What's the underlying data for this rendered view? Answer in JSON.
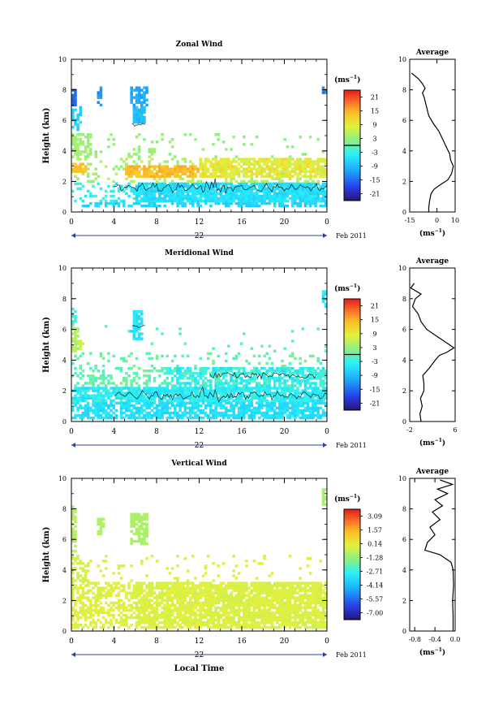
{
  "chart_data": [
    {
      "type": "heatmap",
      "title": "Zonal Wind",
      "xlabel": "",
      "ylabel": "Height (km)",
      "xlim": [
        0,
        24
      ],
      "ylim": [
        0,
        10
      ],
      "xticks": [
        "0",
        "4",
        "8",
        "12",
        "16",
        "20",
        "0"
      ],
      "yticks": [
        "0",
        "2",
        "4",
        "6",
        "8",
        "10"
      ],
      "colorbar": {
        "unit_base": "(ms",
        "unit_exp": "−1",
        "unit_close": ")",
        "ticks": [
          "21",
          "15",
          "9",
          "3",
          "-3",
          "-9",
          "-15",
          "-21"
        ],
        "range": [
          -24,
          24
        ]
      },
      "date_label": "22",
      "date_right": "Feb 2011",
      "average": {
        "title": "Average",
        "xlabel_base": "(ms",
        "xlabel_exp": "−1",
        "xlabel_close": ")",
        "xlim": [
          -15,
          10
        ],
        "xticks": [
          "-15",
          "0",
          "10"
        ],
        "yticks": [
          "0",
          "2",
          "4",
          "6",
          "8",
          "10"
        ],
        "profile": [
          [
            -4.5,
            0
          ],
          [
            -4.5,
            0.3
          ],
          [
            -4.2,
            0.6
          ],
          [
            -3.8,
            0.9
          ],
          [
            -3.2,
            1.2
          ],
          [
            -1.5,
            1.5
          ],
          [
            2,
            1.8
          ],
          [
            6,
            2.1
          ],
          [
            8,
            2.5
          ],
          [
            9,
            3
          ],
          [
            7.5,
            3.4
          ],
          [
            7,
            3.8
          ],
          [
            5,
            4.3
          ],
          [
            3,
            4.8
          ],
          [
            1,
            5.3
          ],
          [
            -2,
            5.8
          ],
          [
            -4.5,
            6.3
          ],
          [
            -6,
            7
          ],
          [
            -7,
            7.5
          ],
          [
            -8,
            7.8
          ],
          [
            -6.5,
            8.1
          ],
          [
            -8,
            8.4
          ],
          [
            -10,
            8.7
          ],
          [
            -14,
            9.1
          ]
        ]
      }
    },
    {
      "type": "heatmap",
      "title": "Meridional Wind",
      "xlabel": "",
      "ylabel": "Height (km)",
      "xlim": [
        0,
        24
      ],
      "ylim": [
        0,
        10
      ],
      "xticks": [
        "0",
        "4",
        "8",
        "12",
        "16",
        "20",
        "0"
      ],
      "yticks": [
        "0",
        "2",
        "4",
        "6",
        "8",
        "10"
      ],
      "colorbar": {
        "unit_base": "(ms",
        "unit_exp": "−1",
        "unit_close": ")",
        "ticks": [
          "21",
          "15",
          "9",
          "3",
          "-3",
          "-9",
          "-15",
          "-21"
        ],
        "range": [
          -24,
          24
        ]
      },
      "date_label": "22",
      "date_right": "Feb 2011",
      "average": {
        "title": "Average",
        "xlabel_base": "(ms",
        "xlabel_exp": "−1",
        "xlabel_close": ")",
        "xlim": [
          -2,
          6
        ],
        "xticks": [
          "-2",
          "6"
        ],
        "yticks": [
          "0",
          "2",
          "4",
          "6",
          "8",
          "10"
        ],
        "profile": [
          [
            0,
            0
          ],
          [
            -0.2,
            0.5
          ],
          [
            0.2,
            1
          ],
          [
            -0.1,
            1.5
          ],
          [
            0.5,
            2
          ],
          [
            0.5,
            2.5
          ],
          [
            0.3,
            3
          ],
          [
            1.5,
            3.5
          ],
          [
            2.5,
            4
          ],
          [
            3.2,
            4.3
          ],
          [
            4.5,
            4.5
          ],
          [
            5.8,
            4.8
          ],
          [
            5,
            5
          ],
          [
            3,
            5.5
          ],
          [
            1,
            6
          ],
          [
            0,
            6.5
          ],
          [
            -0.5,
            7
          ],
          [
            -1.5,
            7.5
          ],
          [
            -1,
            8
          ],
          [
            0,
            8.3
          ],
          [
            -1.8,
            8.7
          ],
          [
            -1.2,
            9
          ]
        ]
      }
    },
    {
      "type": "heatmap",
      "title": "Vertical Wind",
      "xlabel": "Local Time",
      "ylabel": "Height (km)",
      "xlim": [
        0,
        24
      ],
      "ylim": [
        0,
        10
      ],
      "xticks": [
        "0",
        "4",
        "8",
        "12",
        "16",
        "20",
        "0"
      ],
      "yticks": [
        "0",
        "2",
        "4",
        "6",
        "8",
        "10"
      ],
      "colorbar": {
        "unit_base": "(ms",
        "unit_exp": "−1",
        "unit_close": ")",
        "ticks": [
          "3.09",
          "1.57",
          "0.14",
          "-1.28",
          "-2.71",
          "-4.14",
          "-5.57",
          "-7.00"
        ],
        "range": [
          -7.7,
          3.8
        ]
      },
      "date_label": "22",
      "date_right": "Feb 2011",
      "average": {
        "title": "Average",
        "xlabel_base": "(ms",
        "xlabel_exp": "−1",
        "xlabel_close": ")",
        "xlim": [
          -0.9,
          0
        ],
        "xticks": [
          "-0.8",
          "-0.4",
          "0.0"
        ],
        "yticks": [
          "0",
          "2",
          "4",
          "6",
          "8",
          "10"
        ],
        "profile": [
          [
            -0.04,
            0
          ],
          [
            -0.04,
            1
          ],
          [
            -0.05,
            2
          ],
          [
            -0.03,
            3
          ],
          [
            -0.04,
            4
          ],
          [
            -0.08,
            4.5
          ],
          [
            -0.3,
            5
          ],
          [
            -0.6,
            5.3
          ],
          [
            -0.55,
            5.8
          ],
          [
            -0.4,
            6.3
          ],
          [
            -0.5,
            6.8
          ],
          [
            -0.3,
            7.3
          ],
          [
            -0.45,
            7.8
          ],
          [
            -0.25,
            8.2
          ],
          [
            -0.4,
            8.6
          ],
          [
            -0.15,
            9
          ],
          [
            -0.35,
            9.3
          ],
          [
            -0.05,
            9.6
          ],
          [
            -0.3,
            9.9
          ]
        ]
      }
    }
  ]
}
